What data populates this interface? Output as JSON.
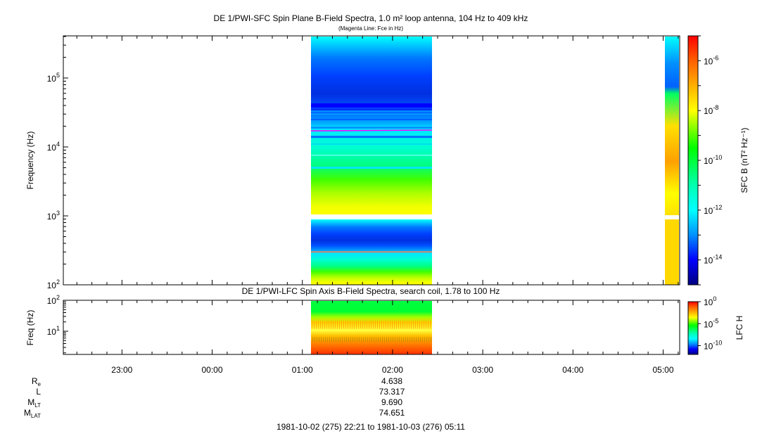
{
  "chart_data": [
    {
      "type": "heatmap",
      "title": "DE 1/PWI-SFC  Spin Plane B-Field Spectra, 1.0 m² loop antenna, 104 Hz to 409 kHz",
      "subtitle": "(Magenta Line: Fce in Hz)",
      "ylabel": "Frequency (Hz)",
      "yscale": "log",
      "ylim": [
        100,
        409000
      ],
      "ytick_labels": [
        "10^2",
        "10^3",
        "10^4",
        "10^5"
      ],
      "colorbar_label": "SFC B (nT² Hz⁻¹)",
      "colorbar_scale": "log",
      "colorbar_range": [
        1e-15,
        1e-05
      ],
      "colorbar_tick_labels": [
        "10^-6",
        "10^-8",
        "10^-10",
        "10^-12",
        "10^-14"
      ],
      "data_segments": [
        {
          "time_start": "01:07",
          "time_end": "02:25",
          "freq_range": [
            100,
            409000
          ]
        },
        {
          "time_start": "05:02",
          "time_end": "05:11",
          "freq_range": [
            100,
            409000
          ]
        }
      ],
      "data_gap_band_hz": [
        900,
        1050
      ],
      "fce_line_hz": 17000
    },
    {
      "type": "heatmap",
      "title": "DE 1/PWI-LFC  Spin Axis B-Field Spectra, search coil, 1.78 to 100 Hz",
      "ylabel": "Freq (Hz)",
      "yscale": "log",
      "ylim": [
        1.78,
        100
      ],
      "ytick_labels": [
        "10^2",
        "10^1"
      ],
      "colorbar_label": "LFC H",
      "colorbar_scale": "log",
      "colorbar_range": [
        1e-12,
        1
      ],
      "colorbar_tick_labels": [
        "10^0",
        "10^-5",
        "10^-10"
      ],
      "data_segments": [
        {
          "time_start": "01:07",
          "time_end": "02:25",
          "freq_range": [
            1.78,
            100
          ]
        }
      ]
    }
  ],
  "time_axis": {
    "start": "22:21",
    "end": "05:11",
    "tick_labels": [
      "23:00",
      "00:00",
      "01:00",
      "02:00",
      "03:00",
      "04:00",
      "05:00"
    ]
  },
  "ephemeris": [
    {
      "label": "R",
      "sub": "e",
      "value": "4.638"
    },
    {
      "label": "L",
      "sub": "",
      "value": "73.317"
    },
    {
      "label": "M",
      "sub": "LT",
      "value": "9.690"
    },
    {
      "label": "M",
      "sub": "LAT",
      "value": "74.651"
    }
  ],
  "time_range_label": "1981-10-02 (275) 22:21 to 1981-10-03 (276) 05:11",
  "colors": {
    "colormap": [
      "#000080",
      "#0000ff",
      "#0080ff",
      "#00ffff",
      "#00ff80",
      "#00ff00",
      "#80ff00",
      "#ffff00",
      "#ffb000",
      "#ff6000",
      "#ff0000"
    ],
    "fce_line": "#ff00ff"
  }
}
